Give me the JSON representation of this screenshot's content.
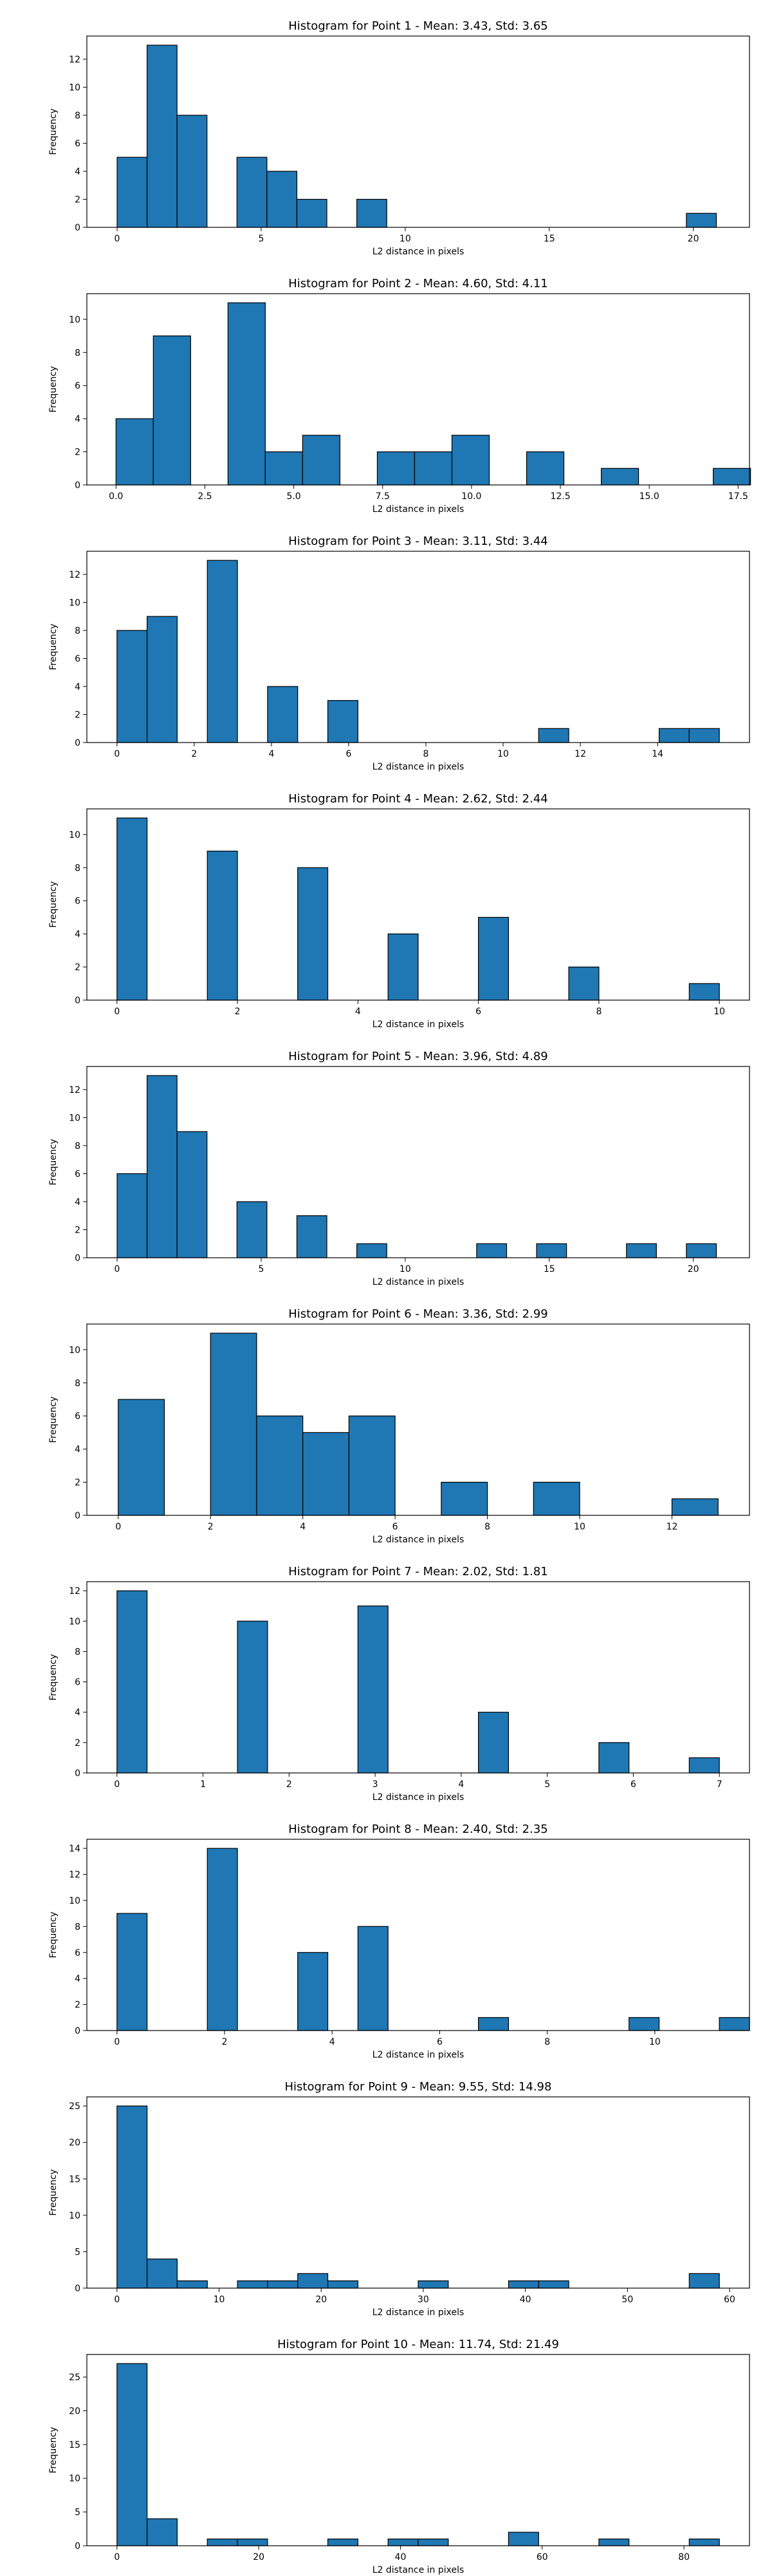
{
  "chart_data": [
    {
      "type": "bar",
      "title": "Histogram for Point 1 - Mean: 3.43, Std: 3.65",
      "xlabel": "L2 distance in pixels",
      "ylabel": "Frequency",
      "xlim": [
        -1.05,
        21.95
      ],
      "ylim": [
        0,
        13.65
      ],
      "xticks": [
        "0",
        "5",
        "10",
        "15",
        "20"
      ],
      "yticks": [
        "0",
        "2",
        "4",
        "6",
        "8",
        "10",
        "12"
      ],
      "bin_width": 1.04,
      "bins": [
        {
          "x": 0.0,
          "count": 5
        },
        {
          "x": 1.04,
          "count": 13
        },
        {
          "x": 2.08,
          "count": 8
        },
        {
          "x": 4.16,
          "count": 5
        },
        {
          "x": 5.2,
          "count": 4
        },
        {
          "x": 6.24,
          "count": 2
        },
        {
          "x": 8.32,
          "count": 2
        },
        {
          "x": 19.76,
          "count": 1
        }
      ],
      "bar_color": "#1f77b4"
    },
    {
      "type": "bar",
      "title": "Histogram for Point 2 - Mean: 4.60, Std: 4.11",
      "xlabel": "L2 distance in pixels",
      "ylabel": "Frequency",
      "xlim": [
        -0.82,
        17.82
      ],
      "ylim": [
        0,
        11.55
      ],
      "xticks": [
        "0.0",
        "2.5",
        "5.0",
        "7.5",
        "10.0",
        "12.5",
        "15.0",
        "17.5"
      ],
      "yticks": [
        "0",
        "2",
        "4",
        "6",
        "8",
        "10"
      ],
      "bin_width": 1.05,
      "bins": [
        {
          "x": 0.0,
          "count": 4
        },
        {
          "x": 1.05,
          "count": 9
        },
        {
          "x": 3.15,
          "count": 11
        },
        {
          "x": 4.2,
          "count": 2
        },
        {
          "x": 5.25,
          "count": 3
        },
        {
          "x": 7.35,
          "count": 2
        },
        {
          "x": 8.4,
          "count": 2
        },
        {
          "x": 9.45,
          "count": 3
        },
        {
          "x": 11.55,
          "count": 2
        },
        {
          "x": 13.65,
          "count": 1
        },
        {
          "x": 16.8,
          "count": 1
        }
      ],
      "bar_color": "#1f77b4"
    },
    {
      "type": "bar",
      "title": "Histogram for Point 3 - Mean: 3.11, Std: 3.44",
      "xlabel": "L2 distance in pixels",
      "ylabel": "Frequency",
      "xlim": [
        -0.78,
        16.38
      ],
      "ylim": [
        0,
        13.65
      ],
      "xticks": [
        "0",
        "2",
        "4",
        "6",
        "8",
        "10",
        "12",
        "14"
      ],
      "yticks": [
        "0",
        "2",
        "4",
        "6",
        "8",
        "10",
        "12"
      ],
      "bin_width": 0.78,
      "bins": [
        {
          "x": 0.0,
          "count": 8
        },
        {
          "x": 0.78,
          "count": 9
        },
        {
          "x": 2.34,
          "count": 13
        },
        {
          "x": 3.9,
          "count": 4
        },
        {
          "x": 5.46,
          "count": 3
        },
        {
          "x": 10.92,
          "count": 1
        },
        {
          "x": 14.04,
          "count": 1
        },
        {
          "x": 14.82,
          "count": 1
        }
      ],
      "bar_color": "#1f77b4"
    },
    {
      "type": "bar",
      "title": "Histogram for Point 4 - Mean: 2.62, Std: 2.44",
      "xlabel": "L2 distance in pixels",
      "ylabel": "Frequency",
      "xlim": [
        -0.5,
        10.5
      ],
      "ylim": [
        0,
        11.55
      ],
      "xticks": [
        "0",
        "2",
        "4",
        "6",
        "8",
        "10"
      ],
      "yticks": [
        "0",
        "2",
        "4",
        "6",
        "8",
        "10"
      ],
      "bin_width": 0.5,
      "bins": [
        {
          "x": 0.0,
          "count": 11
        },
        {
          "x": 1.5,
          "count": 9
        },
        {
          "x": 3.0,
          "count": 8
        },
        {
          "x": 4.5,
          "count": 4
        },
        {
          "x": 6.0,
          "count": 5
        },
        {
          "x": 7.5,
          "count": 2
        },
        {
          "x": 9.5,
          "count": 1
        }
      ],
      "bar_color": "#1f77b4"
    },
    {
      "type": "bar",
      "title": "Histogram for Point 5 - Mean: 3.96, Std: 4.89",
      "xlabel": "L2 distance in pixels",
      "ylabel": "Frequency",
      "xlim": [
        -1.05,
        21.95
      ],
      "ylim": [
        0,
        13.65
      ],
      "xticks": [
        "0",
        "5",
        "10",
        "15",
        "20"
      ],
      "yticks": [
        "0",
        "2",
        "4",
        "6",
        "8",
        "10",
        "12"
      ],
      "bin_width": 1.04,
      "bins": [
        {
          "x": 0.0,
          "count": 6
        },
        {
          "x": 1.04,
          "count": 13
        },
        {
          "x": 2.08,
          "count": 9
        },
        {
          "x": 4.16,
          "count": 4
        },
        {
          "x": 6.24,
          "count": 3
        },
        {
          "x": 8.32,
          "count": 1
        },
        {
          "x": 12.48,
          "count": 1
        },
        {
          "x": 14.56,
          "count": 1
        },
        {
          "x": 17.68,
          "count": 1
        },
        {
          "x": 19.76,
          "count": 1
        }
      ],
      "bar_color": "#1f77b4"
    },
    {
      "type": "bar",
      "title": "Histogram for Point 6 - Mean: 3.36, Std: 2.99",
      "xlabel": "L2 distance in pixels",
      "ylabel": "Frequency",
      "xlim": [
        -0.68,
        13.68
      ],
      "ylim": [
        0,
        11.55
      ],
      "xticks": [
        "0",
        "2",
        "4",
        "6",
        "8",
        "10",
        "12"
      ],
      "yticks": [
        "0",
        "2",
        "4",
        "6",
        "8",
        "10"
      ],
      "bin_width": 1.0,
      "bins": [
        {
          "x": 0.0,
          "count": 7
        },
        {
          "x": 2.0,
          "count": 11
        },
        {
          "x": 3.0,
          "count": 6
        },
        {
          "x": 4.0,
          "count": 5
        },
        {
          "x": 5.0,
          "count": 6
        },
        {
          "x": 7.0,
          "count": 2
        },
        {
          "x": 9.0,
          "count": 2
        },
        {
          "x": 12.0,
          "count": 1
        }
      ],
      "bar_color": "#1f77b4"
    },
    {
      "type": "bar",
      "title": "Histogram for Point 7 - Mean: 2.02, Std: 1.81",
      "xlabel": "L2 distance in pixels",
      "ylabel": "Frequency",
      "xlim": [
        -0.35,
        7.35
      ],
      "ylim": [
        0,
        12.6
      ],
      "xticks": [
        "0",
        "1",
        "2",
        "3",
        "4",
        "5",
        "6",
        "7"
      ],
      "yticks": [
        "0",
        "2",
        "4",
        "6",
        "8",
        "10",
        "12"
      ],
      "bin_width": 0.35,
      "bins": [
        {
          "x": 0.0,
          "count": 12
        },
        {
          "x": 1.4,
          "count": 10
        },
        {
          "x": 2.8,
          "count": 11
        },
        {
          "x": 4.2,
          "count": 4
        },
        {
          "x": 5.6,
          "count": 2
        },
        {
          "x": 6.65,
          "count": 1
        }
      ],
      "bar_color": "#1f77b4"
    },
    {
      "type": "bar",
      "title": "Histogram for Point 8 - Mean: 2.40, Std: 2.35",
      "xlabel": "L2 distance in pixels",
      "ylabel": "Frequency",
      "xlim": [
        -0.56,
        11.76
      ],
      "ylim": [
        0,
        14.7
      ],
      "xticks": [
        "0",
        "2",
        "4",
        "6",
        "8",
        "10"
      ],
      "yticks": [
        "0",
        "2",
        "4",
        "6",
        "8",
        "10",
        "12",
        "14"
      ],
      "bin_width": 0.56,
      "bins": [
        {
          "x": 0.0,
          "count": 9
        },
        {
          "x": 1.68,
          "count": 14
        },
        {
          "x": 3.36,
          "count": 6
        },
        {
          "x": 4.48,
          "count": 8
        },
        {
          "x": 6.72,
          "count": 1
        },
        {
          "x": 9.52,
          "count": 1
        },
        {
          "x": 11.2,
          "count": 1
        }
      ],
      "bar_color": "#1f77b4"
    },
    {
      "type": "bar",
      "title": "Histogram for Point 9 - Mean: 9.55, Std: 14.98",
      "xlabel": "L2 distance in pixels",
      "ylabel": "Frequency",
      "xlim": [
        -2.95,
        61.95
      ],
      "ylim": [
        0,
        26.25
      ],
      "xticks": [
        "0",
        "10",
        "20",
        "30",
        "40",
        "50",
        "60"
      ],
      "yticks": [
        "0",
        "5",
        "10",
        "15",
        "20",
        "25"
      ],
      "bin_width": 2.95,
      "bins": [
        {
          "x": 0.0,
          "count": 25
        },
        {
          "x": 2.95,
          "count": 4
        },
        {
          "x": 5.9,
          "count": 1
        },
        {
          "x": 11.8,
          "count": 1
        },
        {
          "x": 14.75,
          "count": 1
        },
        {
          "x": 17.7,
          "count": 2
        },
        {
          "x": 20.65,
          "count": 1
        },
        {
          "x": 29.5,
          "count": 1
        },
        {
          "x": 38.35,
          "count": 1
        },
        {
          "x": 41.3,
          "count": 1
        },
        {
          "x": 56.05,
          "count": 2
        }
      ],
      "bar_color": "#1f77b4"
    },
    {
      "type": "bar",
      "title": "Histogram for Point 10 - Mean: 11.74, Std: 21.49",
      "xlabel": "L2 distance in pixels",
      "ylabel": "Frequency",
      "xlim": [
        -4.25,
        89.25
      ],
      "ylim": [
        0,
        28.35
      ],
      "xticks": [
        "0",
        "20",
        "40",
        "60",
        "80"
      ],
      "yticks": [
        "0",
        "5",
        "10",
        "15",
        "20",
        "25"
      ],
      "bin_width": 4.25,
      "bins": [
        {
          "x": 0.0,
          "count": 27
        },
        {
          "x": 4.25,
          "count": 4
        },
        {
          "x": 12.75,
          "count": 1
        },
        {
          "x": 17.0,
          "count": 1
        },
        {
          "x": 29.75,
          "count": 1
        },
        {
          "x": 38.25,
          "count": 1
        },
        {
          "x": 42.5,
          "count": 1
        },
        {
          "x": 55.25,
          "count": 2
        },
        {
          "x": 68.0,
          "count": 1
        },
        {
          "x": 80.75,
          "count": 1
        }
      ],
      "bar_color": "#1f77b4"
    }
  ]
}
